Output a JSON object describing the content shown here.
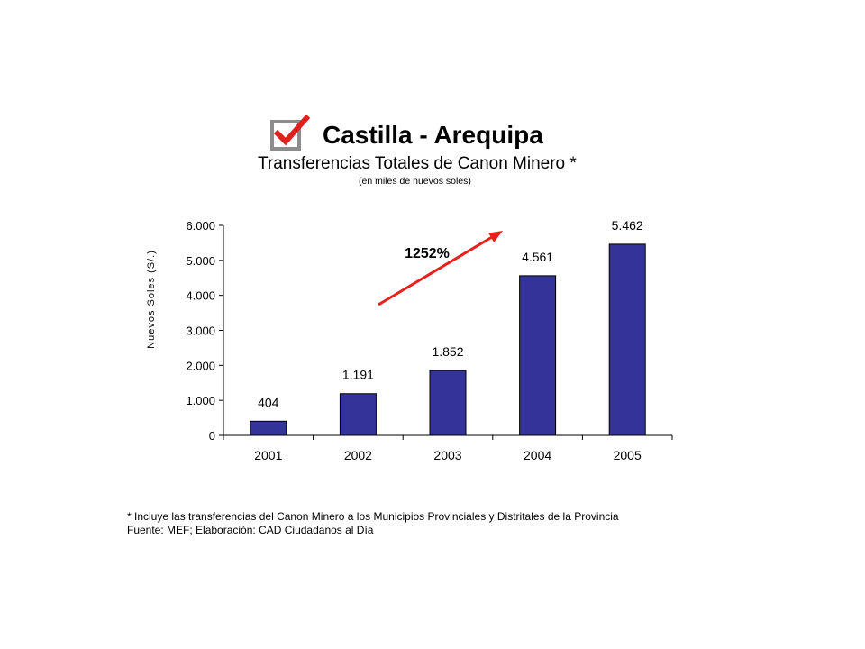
{
  "page": {
    "title": "Castilla - Arequipa",
    "subtitle": "Transferencias Totales de Canon Minero *",
    "units_note": "(en miles de nuevos soles)",
    "footnote": "* Incluye las transferencias del Canon Minero a los Municipios Provinciales y Distritales de la Provincia",
    "source": "Fuente: MEF; Elaboración: CAD Ciudadanos al Día",
    "logo_icon": "checkbox-checked-icon"
  },
  "chart_data": {
    "type": "bar",
    "categories": [
      "2001",
      "2002",
      "2003",
      "2004",
      "2005"
    ],
    "values": [
      404,
      1191,
      1852,
      4561,
      5462
    ],
    "data_labels": [
      "404",
      "1.191",
      "1.852",
      "4.561",
      "5.462"
    ],
    "ylabel": "Nuevos Soles (S/.)",
    "ylim": [
      0,
      6000
    ],
    "yticks": [
      0,
      1000,
      2000,
      3000,
      4000,
      5000,
      6000
    ],
    "ytick_labels": [
      "0",
      "1.000",
      "2.000",
      "3.000",
      "4.000",
      "5.000",
      "6.000"
    ],
    "grid": false,
    "bar_color": "#333399",
    "annotation": {
      "text": "1252%",
      "arrow_color": "#e8201c"
    }
  }
}
